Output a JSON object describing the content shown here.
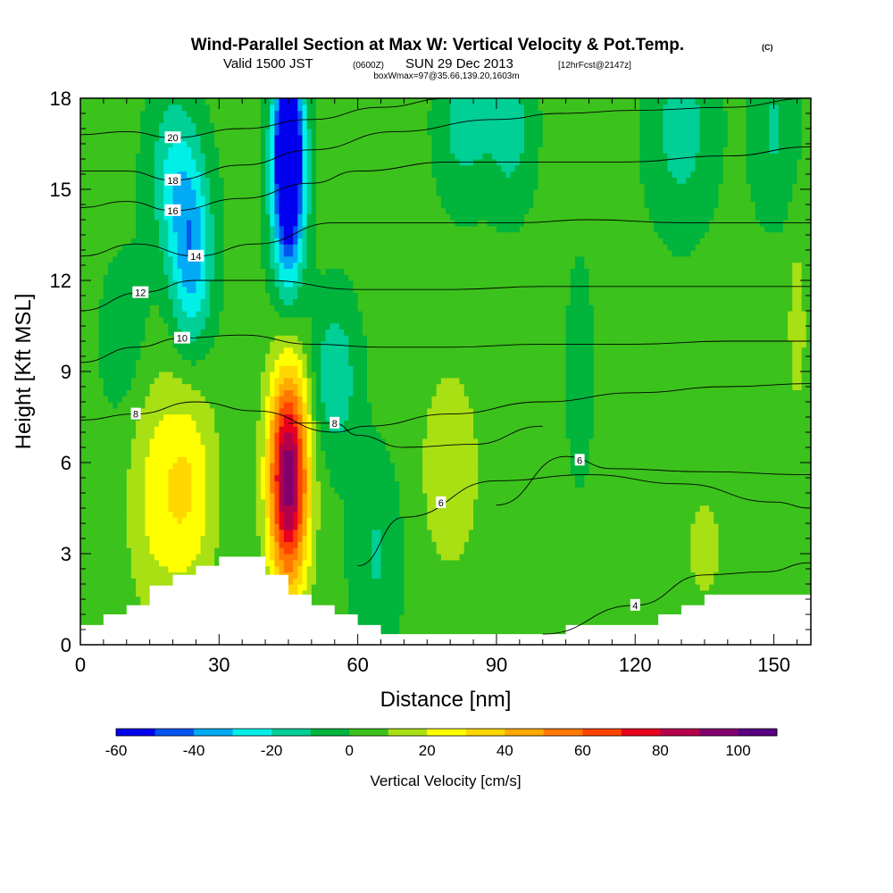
{
  "title": {
    "main": "Wind-Parallel Section at Max W: Vertical Velocity & Pot.Temp.",
    "copyright": "(C)",
    "valid_prefix": "Valid 1500 JST",
    "utc": "(0600Z)",
    "valid_date": "SUN 29 Dec 2013",
    "forecast": "[12hrFcst@2147z]",
    "boxwmax": "boxWmax=97@35.66,139.20,1603m"
  },
  "chart_data": {
    "type": "heatmap",
    "xlabel": "Distance [nm]",
    "ylabel": "Height [Kft MSL]",
    "xlim": [
      0,
      158
    ],
    "ylim": [
      0,
      18
    ],
    "x_ticks": [
      0,
      30,
      60,
      90,
      120,
      150
    ],
    "y_ticks": [
      0,
      3,
      6,
      9,
      12,
      15,
      18
    ],
    "colorbar": {
      "label": "Vertical Velocity [cm/s]",
      "ticks": [
        -60,
        -40,
        -20,
        0,
        20,
        40,
        60,
        80,
        100
      ],
      "range": [
        -60,
        110
      ],
      "step": 10,
      "colors": [
        "#0000ee",
        "#0055f0",
        "#00aaf5",
        "#00f0e8",
        "#00cf96",
        "#00b43c",
        "#3cc21c",
        "#a8e014",
        "#ffff00",
        "#ffd700",
        "#ffaa00",
        "#ff7800",
        "#ff4400",
        "#e8001e",
        "#b4004a",
        "#82006e",
        "#5a0082"
      ]
    },
    "terrain_kft": [
      [
        0,
        0.65
      ],
      [
        5,
        1.0
      ],
      [
        10,
        1.3
      ],
      [
        15,
        1.95
      ],
      [
        20,
        2.3
      ],
      [
        25,
        2.6
      ],
      [
        30,
        2.9
      ],
      [
        35,
        2.9
      ],
      [
        40,
        2.3
      ],
      [
        45,
        1.65
      ],
      [
        50,
        1.3
      ],
      [
        55,
        1.0
      ],
      [
        60,
        0.65
      ],
      [
        65,
        0.35
      ],
      [
        75,
        0.35
      ],
      [
        90,
        0.35
      ],
      [
        100,
        0.35
      ],
      [
        105,
        0.65
      ],
      [
        115,
        0.65
      ],
      [
        120,
        0.65
      ],
      [
        125,
        1.0
      ],
      [
        130,
        1.3
      ],
      [
        135,
        1.65
      ],
      [
        158,
        1.65
      ]
    ],
    "velocity_features": [
      {
        "x": 45,
        "z": 5.5,
        "sx": 3.0,
        "sz": 2.6,
        "w": 95
      },
      {
        "x": 23,
        "z": 5.2,
        "sx": 4.5,
        "sz": 2.6,
        "w": 27
      },
      {
        "x": 15,
        "z": 5.0,
        "sx": 4.0,
        "sz": 3.0,
        "w": 15
      },
      {
        "x": 80,
        "z": 5.8,
        "sx": 5.0,
        "sz": 2.6,
        "w": 14
      },
      {
        "x": 135,
        "z": 3.2,
        "sx": 3.0,
        "sz": 1.4,
        "w": 12
      },
      {
        "x": 155,
        "z": 10.5,
        "sx": 1.5,
        "sz": 2.2,
        "w": 12
      },
      {
        "x": 45,
        "z": 16.5,
        "sx": 2.2,
        "sz": 2.0,
        "w": -80
      },
      {
        "x": 45,
        "z": 14.0,
        "sx": 2.6,
        "sz": 2.4,
        "w": -35
      },
      {
        "x": 24,
        "z": 12.8,
        "sx": 3.2,
        "sz": 2.2,
        "w": -38
      },
      {
        "x": 20,
        "z": 15.5,
        "sx": 3.8,
        "sz": 2.0,
        "w": -22
      },
      {
        "x": 55,
        "z": 8.8,
        "sx": 3.5,
        "sz": 1.8,
        "w": -22
      },
      {
        "x": 64,
        "z": 3.0,
        "sx": 3.8,
        "sz": 2.2,
        "w": -14
      },
      {
        "x": 83,
        "z": 17.2,
        "sx": 4.0,
        "sz": 1.8,
        "w": -18
      },
      {
        "x": 93,
        "z": 17.0,
        "sx": 3.5,
        "sz": 1.8,
        "w": -18
      },
      {
        "x": 130,
        "z": 17.0,
        "sx": 5.0,
        "sz": 2.2,
        "w": -18
      },
      {
        "x": 150,
        "z": 17.0,
        "sx": 3.5,
        "sz": 2.0,
        "w": -14
      },
      {
        "x": 108,
        "z": 9.0,
        "sx": 2.0,
        "sz": 2.5,
        "w": -10
      },
      {
        "x": 10,
        "z": 10.0,
        "sx": 4.0,
        "sz": 2.0,
        "w": -10
      }
    ],
    "background_w": 3,
    "theta_contours": [
      {
        "label": "4",
        "label_x": 120,
        "points": [
          [
            100,
            0.35
          ],
          [
            120,
            1.3
          ],
          [
            135,
            2.3
          ],
          [
            148,
            2.4
          ],
          [
            158,
            2.7
          ]
        ]
      },
      {
        "label": "6",
        "label_x": 78,
        "points": [
          [
            60,
            2.6
          ],
          [
            70,
            4.2
          ],
          [
            90,
            5.4
          ],
          [
            110,
            5.6
          ],
          [
            130,
            5.3
          ],
          [
            150,
            4.7
          ],
          [
            158,
            4.5
          ]
        ]
      },
      {
        "label": "6",
        "label_x": 108,
        "points": [
          [
            90,
            4.6
          ],
          [
            105,
            6.2
          ],
          [
            115,
            5.8
          ],
          [
            135,
            5.7
          ],
          [
            158,
            5.6
          ]
        ]
      },
      {
        "label": "8",
        "label_x": 12,
        "points": [
          [
            0,
            7.4
          ],
          [
            12,
            7.6
          ],
          [
            25,
            8.0
          ],
          [
            38,
            7.7
          ],
          [
            55,
            7.0
          ],
          [
            62,
            7.2
          ],
          [
            80,
            7.6
          ],
          [
            100,
            8.0
          ],
          [
            120,
            8.3
          ],
          [
            140,
            8.5
          ],
          [
            158,
            8.6
          ]
        ]
      },
      {
        "label": "8",
        "label_x": 55,
        "points": [
          [
            45,
            7.3
          ],
          [
            55,
            7.3
          ],
          [
            60,
            6.9
          ],
          [
            70,
            6.5
          ],
          [
            85,
            6.6
          ],
          [
            100,
            7.2
          ]
        ]
      },
      {
        "label": "10",
        "label_x": 22,
        "points": [
          [
            0,
            9.3
          ],
          [
            12,
            9.8
          ],
          [
            22,
            10.1
          ],
          [
            35,
            10.2
          ],
          [
            50,
            9.9
          ],
          [
            65,
            9.8
          ],
          [
            80,
            9.8
          ],
          [
            100,
            9.9
          ],
          [
            120,
            9.9
          ],
          [
            140,
            10.0
          ],
          [
            158,
            10.0
          ]
        ]
      },
      {
        "label": "12",
        "label_x": 13,
        "points": [
          [
            0,
            11.0
          ],
          [
            13,
            11.6
          ],
          [
            25,
            12.0
          ],
          [
            40,
            12.0
          ],
          [
            60,
            11.7
          ],
          [
            80,
            11.7
          ],
          [
            100,
            11.8
          ],
          [
            120,
            11.8
          ],
          [
            140,
            11.8
          ],
          [
            158,
            11.8
          ]
        ]
      },
      {
        "label": "14",
        "label_x": 25,
        "points": [
          [
            0,
            12.8
          ],
          [
            12,
            13.2
          ],
          [
            25,
            12.8
          ],
          [
            38,
            13.2
          ],
          [
            55,
            13.9
          ],
          [
            75,
            13.9
          ],
          [
            95,
            13.9
          ],
          [
            110,
            14.0
          ],
          [
            130,
            13.9
          ],
          [
            158,
            13.9
          ]
        ]
      },
      {
        "label": "16",
        "label_x": 20,
        "points": [
          [
            0,
            14.4
          ],
          [
            10,
            14.6
          ],
          [
            20,
            14.3
          ],
          [
            35,
            14.7
          ],
          [
            50,
            15.2
          ],
          [
            60,
            15.6
          ],
          [
            80,
            15.9
          ],
          [
            100,
            15.9
          ],
          [
            117,
            15.9
          ],
          [
            140,
            16.1
          ],
          [
            158,
            16.4
          ]
        ]
      },
      {
        "label": "18",
        "label_x": 20,
        "points": [
          [
            0,
            15.6
          ],
          [
            10,
            15.6
          ],
          [
            20,
            15.3
          ],
          [
            35,
            15.8
          ],
          [
            50,
            16.3
          ],
          [
            68,
            16.9
          ],
          [
            90,
            17.3
          ],
          [
            104,
            17.5
          ],
          [
            120,
            17.6
          ],
          [
            140,
            17.7
          ],
          [
            158,
            18.0
          ]
        ]
      },
      {
        "label": "20",
        "label_x": 20,
        "points": [
          [
            0,
            16.8
          ],
          [
            10,
            16.9
          ],
          [
            20,
            16.7
          ],
          [
            35,
            17.0
          ],
          [
            50,
            17.3
          ],
          [
            65,
            17.7
          ],
          [
            80,
            18.0
          ]
        ]
      }
    ]
  }
}
